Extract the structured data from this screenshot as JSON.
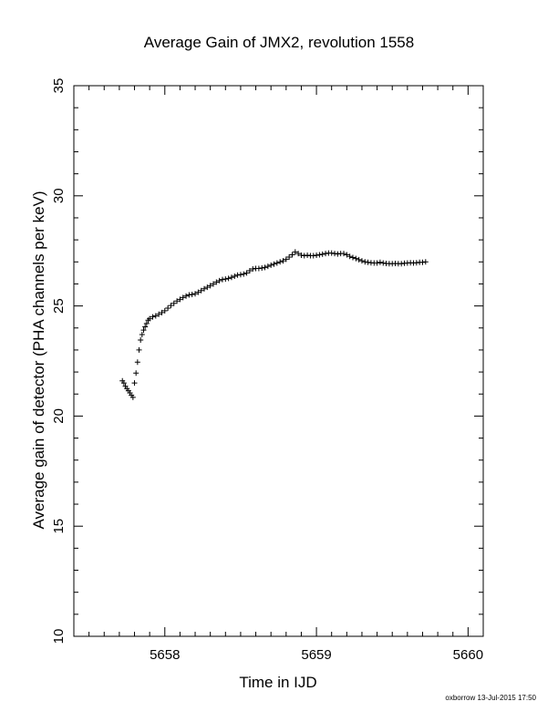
{
  "footer": {
    "credit": "oxborrow 13-Jul-2015 17:50"
  },
  "chart_data": {
    "type": "scatter",
    "title": "Average Gain of JMX2, revolution 1558",
    "xlabel": "Time in IJD",
    "ylabel": "Average gain of detector (PHA channels per keV)",
    "xlim": [
      5657.4,
      5660.1
    ],
    "ylim": [
      10,
      35
    ],
    "xticks": [
      5658,
      5659,
      5660
    ],
    "yticks": [
      10,
      15,
      20,
      25,
      30,
      35
    ],
    "grid": false,
    "marker": "plus",
    "color": "#000000",
    "series": [
      {
        "x": [
          5657.72,
          5657.73,
          5657.74,
          5657.75,
          5657.76,
          5657.77,
          5657.78,
          5657.79,
          5657.8,
          5657.81,
          5657.82,
          5657.83,
          5657.84,
          5657.85,
          5657.86,
          5657.87,
          5657.88,
          5657.89,
          5657.9,
          5657.92,
          5657.94,
          5657.96,
          5657.98,
          5658.0,
          5658.02,
          5658.04,
          5658.06,
          5658.08,
          5658.1,
          5658.12,
          5658.14,
          5658.16,
          5658.18,
          5658.2,
          5658.22,
          5658.24,
          5658.26,
          5658.28,
          5658.3,
          5658.32,
          5658.34,
          5658.36,
          5658.38,
          5658.4,
          5658.42,
          5658.44,
          5658.46,
          5658.48,
          5658.5,
          5658.52,
          5658.54,
          5658.56,
          5658.58,
          5658.6,
          5658.62,
          5658.64,
          5658.66,
          5658.68,
          5658.7,
          5658.72,
          5658.74,
          5658.76,
          5658.78,
          5658.8,
          5658.82,
          5658.84,
          5658.86,
          5658.88,
          5658.9,
          5658.92,
          5658.94,
          5658.96,
          5658.98,
          5659.0,
          5659.02,
          5659.04,
          5659.06,
          5659.08,
          5659.1,
          5659.12,
          5659.14,
          5659.16,
          5659.18,
          5659.2,
          5659.22,
          5659.24,
          5659.26,
          5659.28,
          5659.3,
          5659.32,
          5659.34,
          5659.36,
          5659.38,
          5659.4,
          5659.42,
          5659.44,
          5659.46,
          5659.48,
          5659.5,
          5659.52,
          5659.54,
          5659.56,
          5659.58,
          5659.6,
          5659.62,
          5659.64,
          5659.66,
          5659.68,
          5659.7,
          5659.72
        ],
        "y": [
          21.6,
          21.5,
          21.35,
          21.25,
          21.15,
          21.05,
          20.95,
          20.85,
          21.5,
          21.95,
          22.45,
          23.0,
          23.45,
          23.7,
          23.9,
          24.05,
          24.2,
          24.35,
          24.42,
          24.5,
          24.55,
          24.62,
          24.7,
          24.78,
          24.9,
          25.02,
          25.12,
          25.22,
          25.3,
          25.38,
          25.45,
          25.5,
          25.52,
          25.55,
          25.62,
          25.7,
          25.78,
          25.85,
          25.92,
          26.0,
          26.08,
          26.15,
          26.2,
          26.22,
          26.25,
          26.3,
          26.35,
          26.4,
          26.42,
          26.45,
          26.5,
          26.6,
          26.68,
          26.7,
          26.7,
          26.72,
          26.75,
          26.8,
          26.85,
          26.9,
          26.95,
          27.0,
          27.05,
          27.12,
          27.22,
          27.32,
          27.45,
          27.38,
          27.3,
          27.28,
          27.3,
          27.28,
          27.28,
          27.3,
          27.32,
          27.35,
          27.38,
          27.4,
          27.4,
          27.38,
          27.36,
          27.38,
          27.38,
          27.32,
          27.25,
          27.2,
          27.15,
          27.1,
          27.05,
          27.0,
          26.98,
          26.96,
          26.95,
          26.95,
          26.98,
          26.95,
          26.93,
          26.92,
          26.92,
          26.93,
          26.92,
          26.92,
          26.94,
          26.95,
          26.96,
          26.95,
          26.96,
          26.98,
          26.98,
          27.0
        ]
      }
    ]
  }
}
